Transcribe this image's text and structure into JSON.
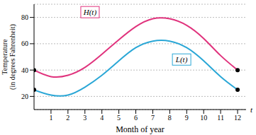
{
  "chart_data": {
    "type": "line",
    "xlabel": "Month of year",
    "ylabel": "Temperature\n(in degrees Fahrenheit)",
    "x": [
      0,
      1,
      2,
      3,
      4,
      5,
      6,
      7,
      8,
      9,
      10,
      11,
      12
    ],
    "series": [
      {
        "name": "H(t)",
        "color": "#e0337d",
        "marker": "endpoints",
        "values": [
          40,
          35,
          36,
          42,
          52,
          63,
          73,
          79,
          79,
          74,
          64,
          51,
          40
        ]
      },
      {
        "name": "L(t)",
        "color": "#2aa7d6",
        "marker": "endpoints",
        "values": [
          25,
          21,
          21,
          27,
          36,
          47,
          57,
          62,
          62,
          57,
          47,
          35,
          25
        ]
      }
    ],
    "xlim": [
      0,
      12.5
    ],
    "xticks": [
      1,
      2,
      3,
      4,
      5,
      6,
      7,
      8,
      9,
      10,
      11,
      12
    ],
    "ylim": [
      10,
      90
    ],
    "yticks": [
      20,
      40,
      60,
      80
    ],
    "grid": true,
    "annotations": [
      {
        "text": "H(t)",
        "x": 3.3,
        "y": 84,
        "series": "H(t)"
      },
      {
        "text": "L(t)",
        "x": 8.7,
        "y": 48,
        "series": "L(t)"
      },
      {
        "text": "t",
        "x": 12.5,
        "y": 10
      }
    ]
  }
}
